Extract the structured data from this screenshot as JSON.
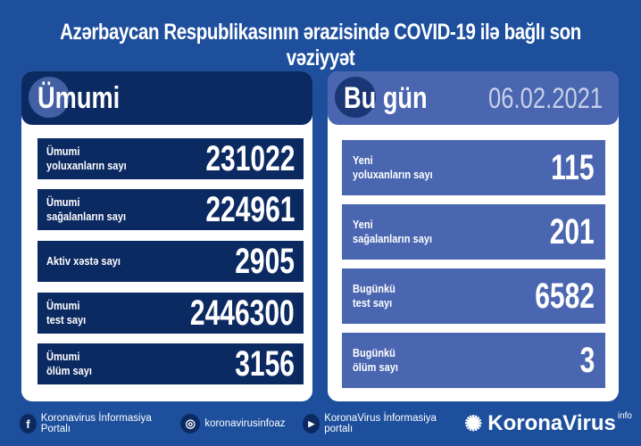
{
  "title": "Azərbaycan Respublikasının ərazisində COVID-19 ilə bağlı son vəziyyət",
  "total": {
    "heading": "Ümumi",
    "rows": [
      {
        "label1": "Ümumi",
        "label2": "yoluxanların sayı",
        "value": "231022"
      },
      {
        "label1": "Ümumi",
        "label2": "sağalanların sayı",
        "value": "224961"
      },
      {
        "label1": "Aktiv xəstə sayı",
        "label2": "",
        "value": "2905"
      },
      {
        "label1": "Ümumi",
        "label2": "test sayı",
        "value": "2446300"
      },
      {
        "label1": "Ümumi",
        "label2": "ölüm sayı",
        "value": "3156"
      }
    ]
  },
  "today": {
    "heading": "Bu gün",
    "date": "06.02.2021",
    "rows": [
      {
        "label1": "Yeni",
        "label2": "yoluxanların sayı",
        "value": "115"
      },
      {
        "label1": "Yeni",
        "label2": "sağalanların sayı",
        "value": "201"
      },
      {
        "label1": "Bugünkü",
        "label2": "test sayı",
        "value": "6582"
      },
      {
        "label1": "Bugünkü",
        "label2": "ölüm sayı",
        "value": "3"
      }
    ]
  },
  "footer": {
    "facebook": "Koronavirus İnformasiya Portalı",
    "instagram": "koronavirusinfoaz",
    "youtube": "KoronaVirus İnformasiya portalı",
    "brand": "KoronaVirus",
    "brand_sup": "info"
  },
  "colors": {
    "background": "#1d4f9d",
    "dark_panel": "#0c2a62",
    "today_panel": "#4a66b0"
  }
}
